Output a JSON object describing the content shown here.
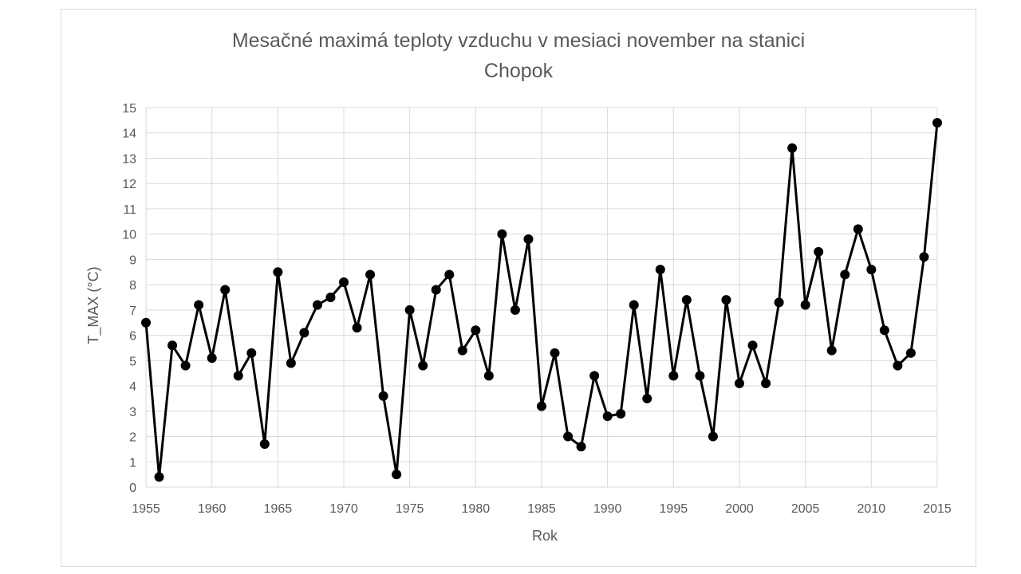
{
  "chart_data": {
    "type": "line",
    "title": "Mesačné maximá teploty vzduchu v mesiaci november na stanici Chopok",
    "title_lines": [
      "Mesačné maximá teploty vzduchu v mesiaci november na stanici",
      "Chopok"
    ],
    "xlabel": "Rok",
    "ylabel": "T_MAX (°C)",
    "xlim": [
      1955,
      2015
    ],
    "ylim": [
      0,
      15
    ],
    "xticks": [
      1955,
      1960,
      1965,
      1970,
      1975,
      1980,
      1985,
      1990,
      1995,
      2000,
      2005,
      2010,
      2015
    ],
    "yticks": [
      0,
      1,
      2,
      3,
      4,
      5,
      6,
      7,
      8,
      9,
      10,
      11,
      12,
      13,
      14,
      15
    ],
    "grid": true,
    "legend": "none",
    "line_color": "#000000",
    "grid_color": "#d9d9d9",
    "text_color": "#595959",
    "x": [
      1955,
      1956,
      1957,
      1958,
      1959,
      1960,
      1961,
      1962,
      1963,
      1964,
      1965,
      1966,
      1967,
      1968,
      1969,
      1970,
      1971,
      1972,
      1973,
      1974,
      1975,
      1976,
      1977,
      1978,
      1979,
      1980,
      1981,
      1982,
      1983,
      1984,
      1985,
      1986,
      1987,
      1988,
      1989,
      1990,
      1991,
      1992,
      1993,
      1994,
      1995,
      1996,
      1997,
      1998,
      1999,
      2000,
      2001,
      2002,
      2003,
      2004,
      2005,
      2006,
      2007,
      2008,
      2009,
      2010,
      2011,
      2012,
      2013,
      2014,
      2015
    ],
    "values": [
      6.5,
      0.4,
      5.6,
      4.8,
      7.2,
      5.1,
      7.8,
      4.4,
      5.3,
      1.7,
      8.5,
      4.9,
      6.1,
      7.2,
      7.5,
      8.1,
      6.3,
      8.4,
      3.6,
      0.5,
      7.0,
      4.8,
      7.8,
      8.4,
      5.4,
      6.2,
      4.4,
      10.0,
      7.0,
      9.8,
      3.2,
      5.3,
      2.0,
      1.6,
      4.4,
      2.8,
      2.9,
      7.2,
      3.5,
      8.6,
      4.4,
      7.4,
      4.4,
      2.0,
      7.4,
      4.1,
      5.6,
      4.1,
      7.3,
      13.4,
      7.2,
      9.3,
      5.4,
      8.4,
      10.2,
      8.6,
      6.2,
      4.8,
      5.3,
      9.1,
      14.4
    ]
  }
}
